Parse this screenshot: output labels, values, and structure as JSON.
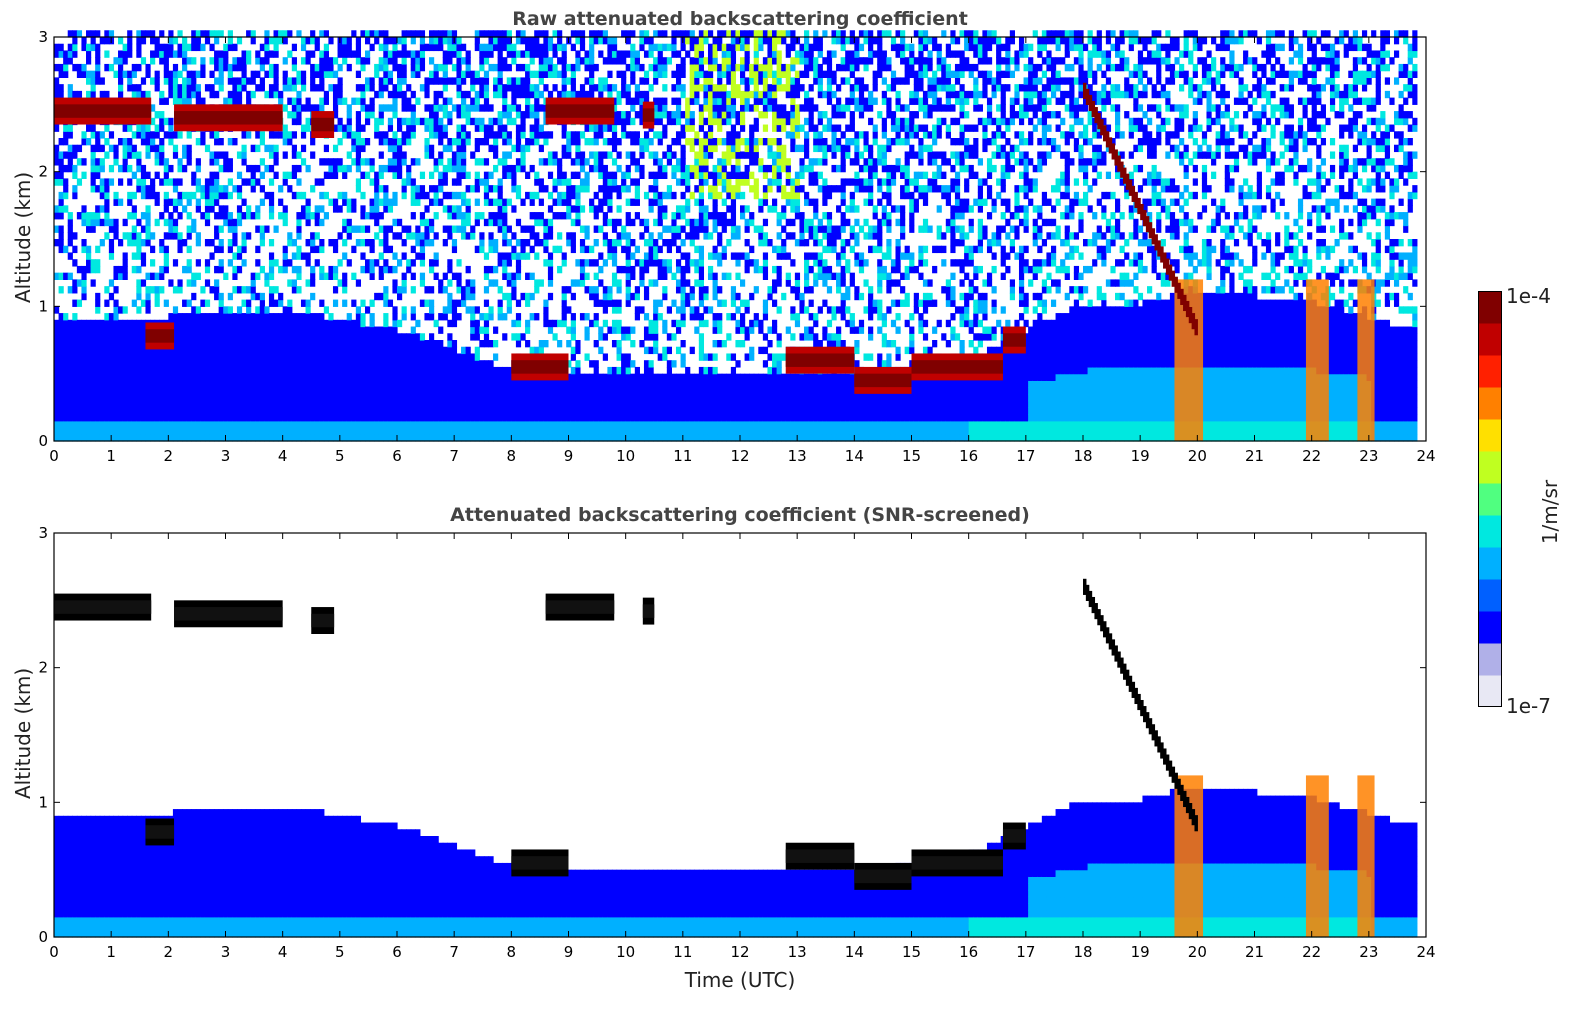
{
  "chart_data": [
    {
      "type": "heatmap",
      "title": "Raw attenuated backscattering coefficient",
      "xlabel": "",
      "ylabel": "Altitude (km)",
      "xlim": [
        0,
        24
      ],
      "ylim": [
        0,
        3
      ],
      "xticks": [
        0,
        1,
        2,
        3,
        4,
        5,
        6,
        7,
        8,
        9,
        10,
        11,
        12,
        13,
        14,
        15,
        16,
        17,
        18,
        19,
        20,
        21,
        22,
        23,
        24
      ],
      "yticks": [
        0,
        1,
        2,
        3
      ],
      "variant": "raw",
      "features": {
        "boundary_layer_top_km": [
          [
            0,
            0.9
          ],
          [
            2,
            0.9
          ],
          [
            4,
            0.95
          ],
          [
            6,
            0.8
          ],
          [
            8,
            0.5
          ],
          [
            10,
            0.45
          ],
          [
            12,
            0.45
          ],
          [
            14,
            0.45
          ],
          [
            16,
            0.6
          ],
          [
            17,
            0.8
          ],
          [
            18,
            1.0
          ],
          [
            19,
            1.0
          ],
          [
            20,
            1.1
          ],
          [
            22,
            1.0
          ],
          [
            23.8,
            0.8
          ]
        ],
        "cloud_layers": [
          {
            "t_start": 0.0,
            "t_end": 1.7,
            "alt_km": 2.45
          },
          {
            "t_start": 2.1,
            "t_end": 4.0,
            "alt_km": 2.4
          },
          {
            "t_start": 4.5,
            "t_end": 4.9,
            "alt_km": 2.35
          },
          {
            "t_start": 8.6,
            "t_end": 9.8,
            "alt_km": 2.45
          },
          {
            "t_start": 10.3,
            "t_end": 10.5,
            "alt_km": 2.42
          },
          {
            "t_start": 1.6,
            "t_end": 2.1,
            "alt_km": 0.78
          },
          {
            "t_start": 8.0,
            "t_end": 9.0,
            "alt_km": 0.55
          },
          {
            "t_start": 12.8,
            "t_end": 14.0,
            "alt_km": 0.6
          },
          {
            "t_start": 14.0,
            "t_end": 15.0,
            "alt_km": 0.45
          },
          {
            "t_start": 15.0,
            "t_end": 16.6,
            "alt_km": 0.55
          },
          {
            "t_start": 16.6,
            "t_end": 17.0,
            "alt_km": 0.75
          }
        ]
      }
    },
    {
      "type": "heatmap",
      "title": "Attenuated backscattering coefficient (SNR-screened)",
      "xlabel": "Time (UTC)",
      "ylabel": "Altitude (km)",
      "xlim": [
        0,
        24
      ],
      "ylim": [
        0,
        3
      ],
      "xticks": [
        0,
        1,
        2,
        3,
        4,
        5,
        6,
        7,
        8,
        9,
        10,
        11,
        12,
        13,
        14,
        15,
        16,
        17,
        18,
        19,
        20,
        21,
        22,
        23,
        24
      ],
      "yticks": [
        0,
        1,
        2,
        3
      ],
      "variant": "screened"
    }
  ],
  "colorbar": {
    "label": "1/m/sr",
    "max_label": "1e-4",
    "min_label": "1e-7",
    "colormap": "jet",
    "colors": [
      "#e8e8f4",
      "#b0b0e8",
      "#0000ff",
      "#0060ff",
      "#00b0ff",
      "#00e8e0",
      "#50ff80",
      "#c0ff20",
      "#ffe000",
      "#ff8000",
      "#ff2000",
      "#c00000",
      "#800000"
    ]
  }
}
